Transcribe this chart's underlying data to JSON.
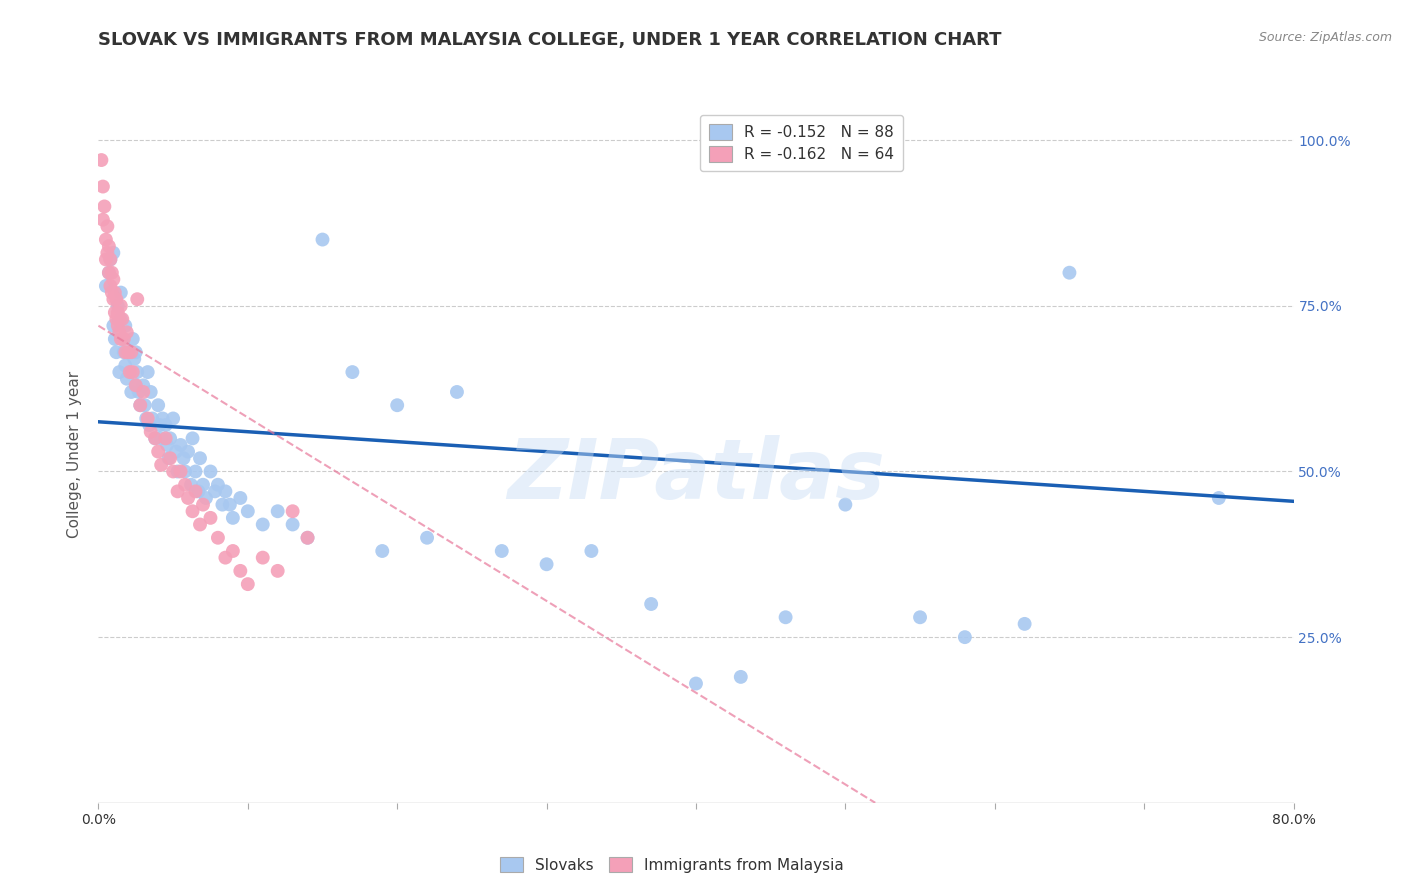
{
  "title": "SLOVAK VS IMMIGRANTS FROM MALAYSIA COLLEGE, UNDER 1 YEAR CORRELATION CHART",
  "source": "Source: ZipAtlas.com",
  "ylabel": "College, Under 1 year",
  "ytick_labels": [
    "100.0%",
    "75.0%",
    "50.0%",
    "25.0%"
  ],
  "ytick_values": [
    1.0,
    0.75,
    0.5,
    0.25
  ],
  "xlim": [
    0.0,
    0.8
  ],
  "ylim": [
    0.0,
    1.05
  ],
  "legend_entries": [
    {
      "label_r": "R = -0.152",
      "label_n": "N = 88",
      "color": "#a8c8f0"
    },
    {
      "label_r": "R = -0.162",
      "label_n": "N = 64",
      "color": "#f4a0b5"
    }
  ],
  "slovaks_x": [
    0.005,
    0.007,
    0.008,
    0.01,
    0.01,
    0.011,
    0.012,
    0.013,
    0.014,
    0.015,
    0.015,
    0.016,
    0.017,
    0.018,
    0.018,
    0.019,
    0.02,
    0.021,
    0.022,
    0.023,
    0.024,
    0.025,
    0.025,
    0.026,
    0.027,
    0.028,
    0.03,
    0.031,
    0.032,
    0.033,
    0.034,
    0.035,
    0.036,
    0.038,
    0.04,
    0.041,
    0.042,
    0.043,
    0.045,
    0.046,
    0.047,
    0.048,
    0.05,
    0.052,
    0.053,
    0.055,
    0.057,
    0.058,
    0.06,
    0.062,
    0.063,
    0.065,
    0.067,
    0.068,
    0.07,
    0.072,
    0.075,
    0.078,
    0.08,
    0.083,
    0.085,
    0.088,
    0.09,
    0.095,
    0.1,
    0.11,
    0.12,
    0.13,
    0.14,
    0.15,
    0.17,
    0.19,
    0.2,
    0.22,
    0.24,
    0.27,
    0.3,
    0.33,
    0.37,
    0.4,
    0.43,
    0.46,
    0.5,
    0.55,
    0.58,
    0.62,
    0.65,
    0.75
  ],
  "slovaks_y": [
    0.78,
    0.8,
    0.82,
    0.83,
    0.72,
    0.7,
    0.68,
    0.75,
    0.65,
    0.73,
    0.77,
    0.7,
    0.68,
    0.66,
    0.72,
    0.64,
    0.68,
    0.65,
    0.62,
    0.7,
    0.67,
    0.63,
    0.68,
    0.65,
    0.62,
    0.6,
    0.63,
    0.6,
    0.58,
    0.65,
    0.57,
    0.62,
    0.58,
    0.55,
    0.6,
    0.57,
    0.55,
    0.58,
    0.57,
    0.54,
    0.52,
    0.55,
    0.58,
    0.53,
    0.5,
    0.54,
    0.52,
    0.5,
    0.53,
    0.48,
    0.55,
    0.5,
    0.47,
    0.52,
    0.48,
    0.46,
    0.5,
    0.47,
    0.48,
    0.45,
    0.47,
    0.45,
    0.43,
    0.46,
    0.44,
    0.42,
    0.44,
    0.42,
    0.4,
    0.85,
    0.65,
    0.38,
    0.6,
    0.4,
    0.62,
    0.38,
    0.36,
    0.38,
    0.3,
    0.18,
    0.19,
    0.28,
    0.45,
    0.28,
    0.25,
    0.27,
    0.8,
    0.46
  ],
  "malaysia_x": [
    0.002,
    0.003,
    0.003,
    0.004,
    0.005,
    0.005,
    0.006,
    0.006,
    0.007,
    0.007,
    0.008,
    0.008,
    0.009,
    0.009,
    0.01,
    0.01,
    0.011,
    0.011,
    0.012,
    0.012,
    0.013,
    0.013,
    0.014,
    0.014,
    0.015,
    0.015,
    0.016,
    0.017,
    0.018,
    0.019,
    0.02,
    0.021,
    0.022,
    0.023,
    0.025,
    0.026,
    0.028,
    0.03,
    0.033,
    0.035,
    0.038,
    0.04,
    0.042,
    0.045,
    0.048,
    0.05,
    0.053,
    0.055,
    0.058,
    0.06,
    0.063,
    0.065,
    0.068,
    0.07,
    0.075,
    0.08,
    0.085,
    0.09,
    0.095,
    0.1,
    0.11,
    0.12,
    0.13,
    0.14
  ],
  "malaysia_y": [
    0.97,
    0.93,
    0.88,
    0.9,
    0.85,
    0.82,
    0.87,
    0.83,
    0.8,
    0.84,
    0.78,
    0.82,
    0.77,
    0.8,
    0.76,
    0.79,
    0.74,
    0.77,
    0.73,
    0.76,
    0.72,
    0.74,
    0.71,
    0.73,
    0.7,
    0.75,
    0.73,
    0.7,
    0.68,
    0.71,
    0.68,
    0.65,
    0.68,
    0.65,
    0.63,
    0.76,
    0.6,
    0.62,
    0.58,
    0.56,
    0.55,
    0.53,
    0.51,
    0.55,
    0.52,
    0.5,
    0.47,
    0.5,
    0.48,
    0.46,
    0.44,
    0.47,
    0.42,
    0.45,
    0.43,
    0.4,
    0.37,
    0.38,
    0.35,
    0.33,
    0.37,
    0.35,
    0.44,
    0.4
  ],
  "blue_line_x": [
    0.0,
    0.8
  ],
  "blue_line_y": [
    0.575,
    0.455
  ],
  "pink_line_x": [
    0.0,
    0.52
  ],
  "pink_line_y": [
    0.72,
    0.0
  ],
  "scatter_color_blue": "#a8c8f0",
  "scatter_color_pink": "#f4a0b8",
  "line_color_blue": "#1a5fb4",
  "line_color_pink": "#e8789a",
  "grid_color": "#cccccc",
  "background_color": "#ffffff",
  "right_axis_color": "#4472c4",
  "title_fontsize": 13,
  "axis_label_fontsize": 11,
  "tick_fontsize": 10,
  "legend_fontsize": 11
}
